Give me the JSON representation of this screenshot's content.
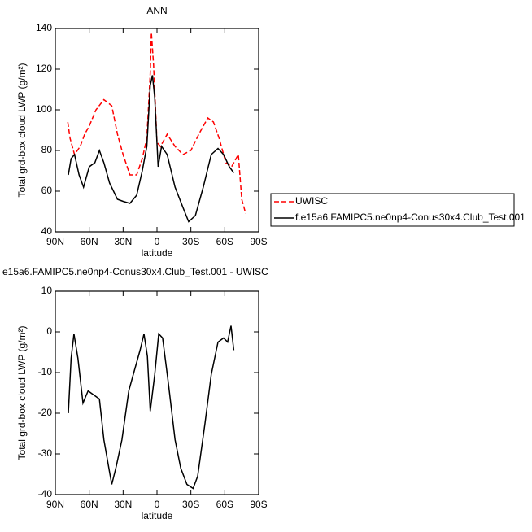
{
  "chart_data": [
    {
      "type": "line",
      "title": "ANN",
      "xlabel": "latitude",
      "ylabel": "Total grd-box cloud LWP (g/m²)",
      "xlim": [
        90,
        -90
      ],
      "xticks": [
        {
          "value": 90,
          "label": "90N"
        },
        {
          "value": 60,
          "label": "60N"
        },
        {
          "value": 30,
          "label": "30N"
        },
        0,
        {
          "value": -30,
          "label": "30S"
        },
        {
          "value": -60,
          "label": "60S"
        },
        {
          "value": -90,
          "label": "90S"
        }
      ],
      "ylim": [
        40,
        140
      ],
      "yticks": [
        40,
        60,
        80,
        100,
        120,
        140
      ],
      "legend": "right",
      "series": [
        {
          "name": "UWISC",
          "color": "#ff0000",
          "line_style": "dashed",
          "x": [
            79,
            77,
            73,
            68,
            64,
            60,
            54,
            47,
            40,
            35,
            30,
            24,
            18,
            13,
            9,
            6,
            5,
            3,
            0,
            -3,
            -9,
            -16,
            -23,
            -30,
            -37,
            -45,
            -50,
            -55,
            -61,
            -66,
            -72,
            -75,
            -78.5
          ],
          "values": [
            94,
            86,
            78,
            82,
            88,
            92,
            100,
            105,
            102,
            88,
            78,
            68,
            68,
            76,
            86,
            118,
            138,
            122,
            84,
            82,
            88,
            82,
            78,
            80,
            88,
            96,
            94,
            86,
            74,
            72,
            78,
            56,
            49
          ]
        },
        {
          "name": "f.e15a6.FAMIPC5.ne0np4-Conus30x4.Club_Test.001",
          "color": "#000000",
          "line_style": "solid",
          "x": [
            78.5,
            76,
            73,
            69,
            65,
            60,
            55,
            51,
            47,
            42,
            35,
            30,
            24,
            18,
            13,
            9,
            6,
            4,
            2,
            -1,
            -4,
            -9,
            -16,
            -23,
            -28,
            -34,
            -41,
            -48,
            -54,
            -59,
            -64,
            -68
          ],
          "values": [
            68,
            76,
            78,
            68,
            62,
            72,
            74,
            80,
            74,
            64,
            56,
            55,
            54,
            58,
            70,
            82,
            112,
            117,
            106,
            72,
            82,
            78,
            62,
            52,
            45,
            48,
            62,
            78,
            81,
            78,
            72,
            69
          ]
        }
      ]
    },
    {
      "type": "line",
      "title": "e15a6.FAMIPC5.ne0np4-Conus30x4.Club_Test.001 - UWISC",
      "xlabel": "latitude",
      "ylabel": "Total grd-box cloud LWP (g/m²)",
      "xlim": [
        90,
        -90
      ],
      "xticks": [
        {
          "value": 90,
          "label": "90N"
        },
        {
          "value": 60,
          "label": "60N"
        },
        {
          "value": 30,
          "label": "30N"
        },
        0,
        {
          "value": -30,
          "label": "30S"
        },
        {
          "value": -60,
          "label": "60S"
        },
        {
          "value": -90,
          "label": "90S"
        }
      ],
      "ylim": [
        -40,
        10
      ],
      "yticks": [
        -40,
        -30,
        -20,
        -10,
        0,
        10
      ],
      "series": [
        {
          "color": "#000000",
          "line_style": "solid",
          "x": [
            78.5,
            76,
            73.5,
            70,
            65.5,
            61,
            56,
            51,
            47,
            42,
            40,
            36,
            31,
            25,
            20,
            15,
            11.5,
            8.5,
            6,
            2,
            -1.5,
            -5,
            -10,
            -16,
            -21,
            -26.5,
            -32,
            -36,
            -42.5,
            -48,
            -54,
            -59,
            -62.5,
            -65.5,
            -68
          ],
          "values": [
            -20,
            -6.5,
            -0.5,
            -6.5,
            -17.5,
            -14.5,
            -15.5,
            -16.5,
            -26.5,
            -34.5,
            -37.5,
            -33,
            -26.5,
            -14.5,
            -9.5,
            -4.5,
            -0.5,
            -6,
            -19.5,
            -10.5,
            -0.5,
            -1.5,
            -12.5,
            -26.5,
            -33.5,
            -37.5,
            -38.5,
            -35.5,
            -22.5,
            -10.5,
            -2.5,
            -1.5,
            -2.5,
            1.5,
            -4.5
          ]
        }
      ]
    }
  ]
}
